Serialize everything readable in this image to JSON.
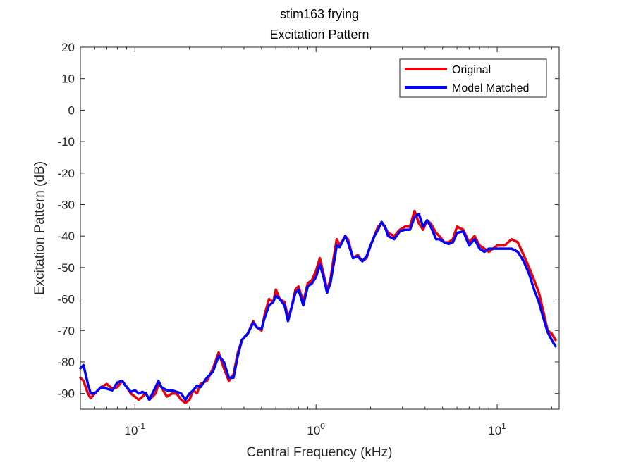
{
  "chart_data": {
    "type": "line",
    "title": "stim163 frying",
    "subtitle": "Excitation Pattern",
    "xlabel": "Central Frequency (kHz)",
    "ylabel": "Excitation Pattern (dB)",
    "xscale": "log",
    "xlim": [
      0.05,
      22
    ],
    "ylim": [
      -95,
      20
    ],
    "yticks": [
      20,
      10,
      0,
      -10,
      -20,
      -30,
      -40,
      -50,
      -60,
      -70,
      -80,
      -90
    ],
    "xticks": [
      {
        "value": 0.1,
        "base": "10",
        "exp": "-1"
      },
      {
        "value": 1,
        "base": "10",
        "exp": "0"
      },
      {
        "value": 10,
        "base": "10",
        "exp": "1"
      }
    ],
    "grid": false,
    "legend_position": "top-right",
    "series": [
      {
        "name": "Original",
        "color": "#e8000b",
        "points": [
          [
            0.05,
            -85
          ],
          [
            0.052,
            -86
          ],
          [
            0.055,
            -90
          ],
          [
            0.057,
            -91.5
          ],
          [
            0.06,
            -90
          ],
          [
            0.065,
            -88
          ],
          [
            0.07,
            -87
          ],
          [
            0.075,
            -88.5
          ],
          [
            0.08,
            -88
          ],
          [
            0.085,
            -86
          ],
          [
            0.09,
            -88
          ],
          [
            0.095,
            -90
          ],
          [
            0.1,
            -91
          ],
          [
            0.105,
            -92
          ],
          [
            0.11,
            -91
          ],
          [
            0.115,
            -90
          ],
          [
            0.12,
            -92
          ],
          [
            0.13,
            -90
          ],
          [
            0.135,
            -87
          ],
          [
            0.14,
            -88
          ],
          [
            0.15,
            -91
          ],
          [
            0.16,
            -90
          ],
          [
            0.17,
            -90
          ],
          [
            0.18,
            -92
          ],
          [
            0.19,
            -93
          ],
          [
            0.2,
            -92
          ],
          [
            0.21,
            -89
          ],
          [
            0.22,
            -90
          ],
          [
            0.23,
            -87
          ],
          [
            0.25,
            -86
          ],
          [
            0.27,
            -82
          ],
          [
            0.29,
            -77
          ],
          [
            0.31,
            -82
          ],
          [
            0.33,
            -86
          ],
          [
            0.35,
            -84
          ],
          [
            0.37,
            -77
          ],
          [
            0.39,
            -73
          ],
          [
            0.42,
            -71
          ],
          [
            0.45,
            -67
          ],
          [
            0.47,
            -69
          ],
          [
            0.5,
            -70
          ],
          [
            0.52,
            -65
          ],
          [
            0.55,
            -60
          ],
          [
            0.58,
            -61
          ],
          [
            0.6,
            -57
          ],
          [
            0.63,
            -60
          ],
          [
            0.67,
            -61
          ],
          [
            0.7,
            -66
          ],
          [
            0.73,
            -63
          ],
          [
            0.77,
            -57
          ],
          [
            0.8,
            -56
          ],
          [
            0.85,
            -61
          ],
          [
            0.9,
            -55
          ],
          [
            0.95,
            -54
          ],
          [
            1.0,
            -51
          ],
          [
            1.05,
            -47
          ],
          [
            1.1,
            -52
          ],
          [
            1.15,
            -57
          ],
          [
            1.2,
            -54
          ],
          [
            1.25,
            -47
          ],
          [
            1.3,
            -41
          ],
          [
            1.35,
            -43
          ],
          [
            1.45,
            -40
          ],
          [
            1.5,
            -41
          ],
          [
            1.6,
            -47
          ],
          [
            1.7,
            -46
          ],
          [
            1.8,
            -48
          ],
          [
            1.9,
            -47
          ],
          [
            2.0,
            -43
          ],
          [
            2.1,
            -40
          ],
          [
            2.2,
            -37
          ],
          [
            2.3,
            -36
          ],
          [
            2.4,
            -37
          ],
          [
            2.5,
            -39
          ],
          [
            2.7,
            -40
          ],
          [
            2.9,
            -38
          ],
          [
            3.1,
            -37
          ],
          [
            3.3,
            -37
          ],
          [
            3.5,
            -32
          ],
          [
            3.7,
            -36
          ],
          [
            3.9,
            -38
          ],
          [
            4.1,
            -35
          ],
          [
            4.3,
            -36
          ],
          [
            4.6,
            -39
          ],
          [
            4.8,
            -40
          ],
          [
            5.1,
            -42
          ],
          [
            5.4,
            -42
          ],
          [
            5.7,
            -41
          ],
          [
            6.0,
            -37
          ],
          [
            6.5,
            -38
          ],
          [
            7.0,
            -42
          ],
          [
            7.5,
            -40
          ],
          [
            8.0,
            -43
          ],
          [
            8.5,
            -44
          ],
          [
            9.0,
            -45
          ],
          [
            10,
            -43
          ],
          [
            11,
            -43
          ],
          [
            12,
            -41
          ],
          [
            13,
            -42
          ],
          [
            14,
            -46
          ],
          [
            15,
            -50
          ],
          [
            16,
            -54
          ],
          [
            17,
            -58
          ],
          [
            18,
            -64
          ],
          [
            19,
            -70
          ],
          [
            20,
            -71
          ],
          [
            21,
            -73
          ]
        ]
      },
      {
        "name": "Model Matched",
        "color": "#0000ff",
        "points": [
          [
            0.05,
            -82
          ],
          [
            0.052,
            -81
          ],
          [
            0.055,
            -87
          ],
          [
            0.057,
            -90
          ],
          [
            0.06,
            -90
          ],
          [
            0.065,
            -88
          ],
          [
            0.07,
            -88.5
          ],
          [
            0.075,
            -89
          ],
          [
            0.08,
            -86.5
          ],
          [
            0.085,
            -86
          ],
          [
            0.09,
            -88
          ],
          [
            0.095,
            -89.5
          ],
          [
            0.1,
            -89
          ],
          [
            0.105,
            -90
          ],
          [
            0.11,
            -89.5
          ],
          [
            0.115,
            -90
          ],
          [
            0.12,
            -92
          ],
          [
            0.13,
            -88
          ],
          [
            0.135,
            -86
          ],
          [
            0.14,
            -88
          ],
          [
            0.15,
            -89
          ],
          [
            0.16,
            -89
          ],
          [
            0.17,
            -89.5
          ],
          [
            0.18,
            -90
          ],
          [
            0.19,
            -92
          ],
          [
            0.2,
            -90
          ],
          [
            0.21,
            -89
          ],
          [
            0.22,
            -87.5
          ],
          [
            0.23,
            -88
          ],
          [
            0.25,
            -85
          ],
          [
            0.27,
            -83
          ],
          [
            0.29,
            -78
          ],
          [
            0.31,
            -80
          ],
          [
            0.33,
            -85
          ],
          [
            0.35,
            -85
          ],
          [
            0.37,
            -78
          ],
          [
            0.39,
            -73
          ],
          [
            0.42,
            -71
          ],
          [
            0.45,
            -67.5
          ],
          [
            0.47,
            -69
          ],
          [
            0.5,
            -69.5
          ],
          [
            0.52,
            -66
          ],
          [
            0.55,
            -62
          ],
          [
            0.58,
            -61
          ],
          [
            0.6,
            -59
          ],
          [
            0.63,
            -60
          ],
          [
            0.67,
            -62
          ],
          [
            0.7,
            -67
          ],
          [
            0.73,
            -63
          ],
          [
            0.77,
            -58
          ],
          [
            0.8,
            -57
          ],
          [
            0.85,
            -62
          ],
          [
            0.9,
            -56
          ],
          [
            0.95,
            -55
          ],
          [
            1.0,
            -53
          ],
          [
            1.05,
            -49
          ],
          [
            1.1,
            -53
          ],
          [
            1.15,
            -58
          ],
          [
            1.2,
            -55
          ],
          [
            1.25,
            -49
          ],
          [
            1.3,
            -43
          ],
          [
            1.35,
            -43.5
          ],
          [
            1.45,
            -40
          ],
          [
            1.5,
            -42
          ],
          [
            1.6,
            -47
          ],
          [
            1.7,
            -46.5
          ],
          [
            1.8,
            -48
          ],
          [
            1.9,
            -46.5
          ],
          [
            2.0,
            -43
          ],
          [
            2.1,
            -40
          ],
          [
            2.2,
            -38
          ],
          [
            2.3,
            -35.5
          ],
          [
            2.4,
            -37
          ],
          [
            2.5,
            -40
          ],
          [
            2.7,
            -41
          ],
          [
            2.9,
            -38.5
          ],
          [
            3.1,
            -38
          ],
          [
            3.3,
            -38
          ],
          [
            3.5,
            -34
          ],
          [
            3.7,
            -33
          ],
          [
            3.9,
            -37
          ],
          [
            4.1,
            -35
          ],
          [
            4.3,
            -37
          ],
          [
            4.6,
            -41
          ],
          [
            4.8,
            -41
          ],
          [
            5.1,
            -42
          ],
          [
            5.4,
            -42.5
          ],
          [
            5.7,
            -42
          ],
          [
            6.0,
            -39
          ],
          [
            6.5,
            -38.5
          ],
          [
            7.0,
            -43
          ],
          [
            7.5,
            -41
          ],
          [
            8.0,
            -44
          ],
          [
            8.5,
            -45
          ],
          [
            9.0,
            -44
          ],
          [
            10,
            -44
          ],
          [
            11,
            -44
          ],
          [
            12,
            -44
          ],
          [
            13,
            -45
          ],
          [
            14,
            -48
          ],
          [
            15,
            -52
          ],
          [
            16,
            -57
          ],
          [
            17,
            -61
          ],
          [
            18,
            -66
          ],
          [
            19,
            -70.5
          ],
          [
            20,
            -73
          ],
          [
            21,
            -75
          ]
        ]
      }
    ]
  }
}
